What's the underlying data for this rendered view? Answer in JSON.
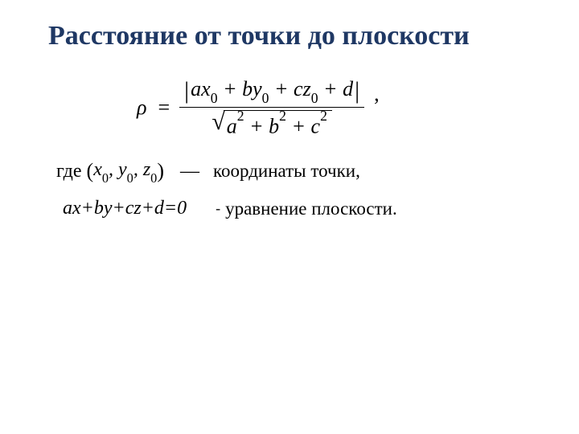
{
  "colors": {
    "title": "#1f3864",
    "body": "#000000",
    "background": "#ffffff"
  },
  "typography": {
    "family": "Times New Roman",
    "title_fontsize_pt": 26,
    "body_fontsize_pt": 20
  },
  "title": "Расстояние от точки до плоскости",
  "formula": {
    "lhs": "ρ",
    "equals": "=",
    "numerator_core": "ax₀ + by₀ + cz₀ + d",
    "numerator_html": "ax<sub>0</sub> + by<sub>0</sub> + cz<sub>0</sub> + d",
    "denominator_core": "a² + b² + c²",
    "denominator_html": "a<sup>2</sup> + b<sup>2</sup> + c<sup>2</sup>",
    "trailing_comma": ","
  },
  "line2": {
    "where": "где",
    "point_html": "x<sub>0</sub>, y<sub>0</sub>, z<sub>0</sub>",
    "dash": "—",
    "explain": "координаты точки,"
  },
  "line3": {
    "equation": "ax+by+cz+d=0",
    "hyphen": "-",
    "explain": "уравнение плоскости."
  }
}
